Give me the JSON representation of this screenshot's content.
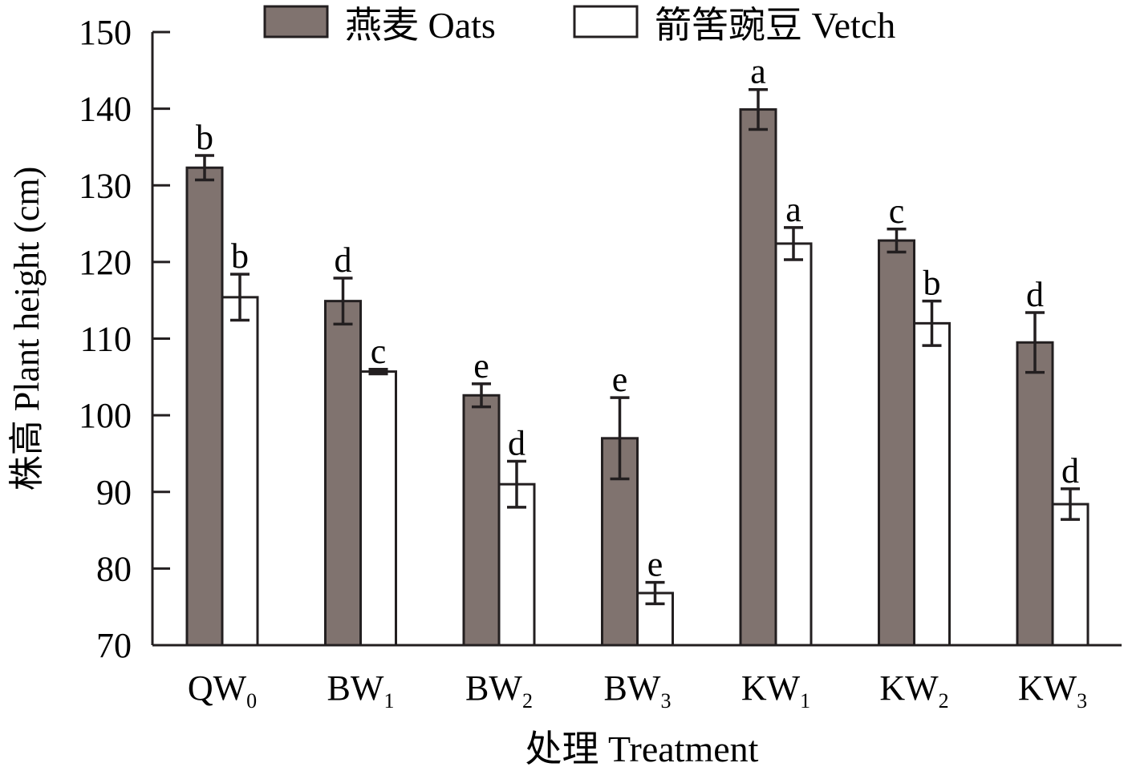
{
  "chart_data": {
    "type": "bar",
    "title": "",
    "xlabel": "处理 Treatment",
    "ylabel": "株高 Plant height (cm)",
    "ylim": [
      70,
      150
    ],
    "yticks": [
      70,
      80,
      90,
      100,
      110,
      120,
      130,
      140,
      150
    ],
    "categories": [
      {
        "base": "QW",
        "sub": "0"
      },
      {
        "base": "BW",
        "sub": "1"
      },
      {
        "base": "BW",
        "sub": "2"
      },
      {
        "base": "BW",
        "sub": "3"
      },
      {
        "base": "KW",
        "sub": "1"
      },
      {
        "base": "KW",
        "sub": "2"
      },
      {
        "base": "KW",
        "sub": "3"
      }
    ],
    "legend_position": "top",
    "grid": false,
    "series": [
      {
        "name": "燕麦 Oats",
        "color": "#80736f",
        "values": [
          132.3,
          114.9,
          102.6,
          97.0,
          139.9,
          122.8,
          109.5
        ],
        "errors": [
          1.6,
          3.0,
          1.5,
          5.3,
          2.6,
          1.5,
          3.9
        ],
        "letters": [
          "b",
          "d",
          "e",
          "e",
          "a",
          "c",
          "d"
        ]
      },
      {
        "name": "箭筈豌豆 Vetch",
        "color": "#ffffff",
        "values": [
          115.4,
          105.7,
          91.0,
          76.8,
          122.4,
          112.0,
          88.4
        ],
        "errors": [
          3.0,
          0.3,
          3.0,
          1.4,
          2.1,
          2.9,
          2.0
        ],
        "letters": [
          "b",
          "c",
          "d",
          "e",
          "a",
          "b",
          "d"
        ]
      }
    ]
  }
}
